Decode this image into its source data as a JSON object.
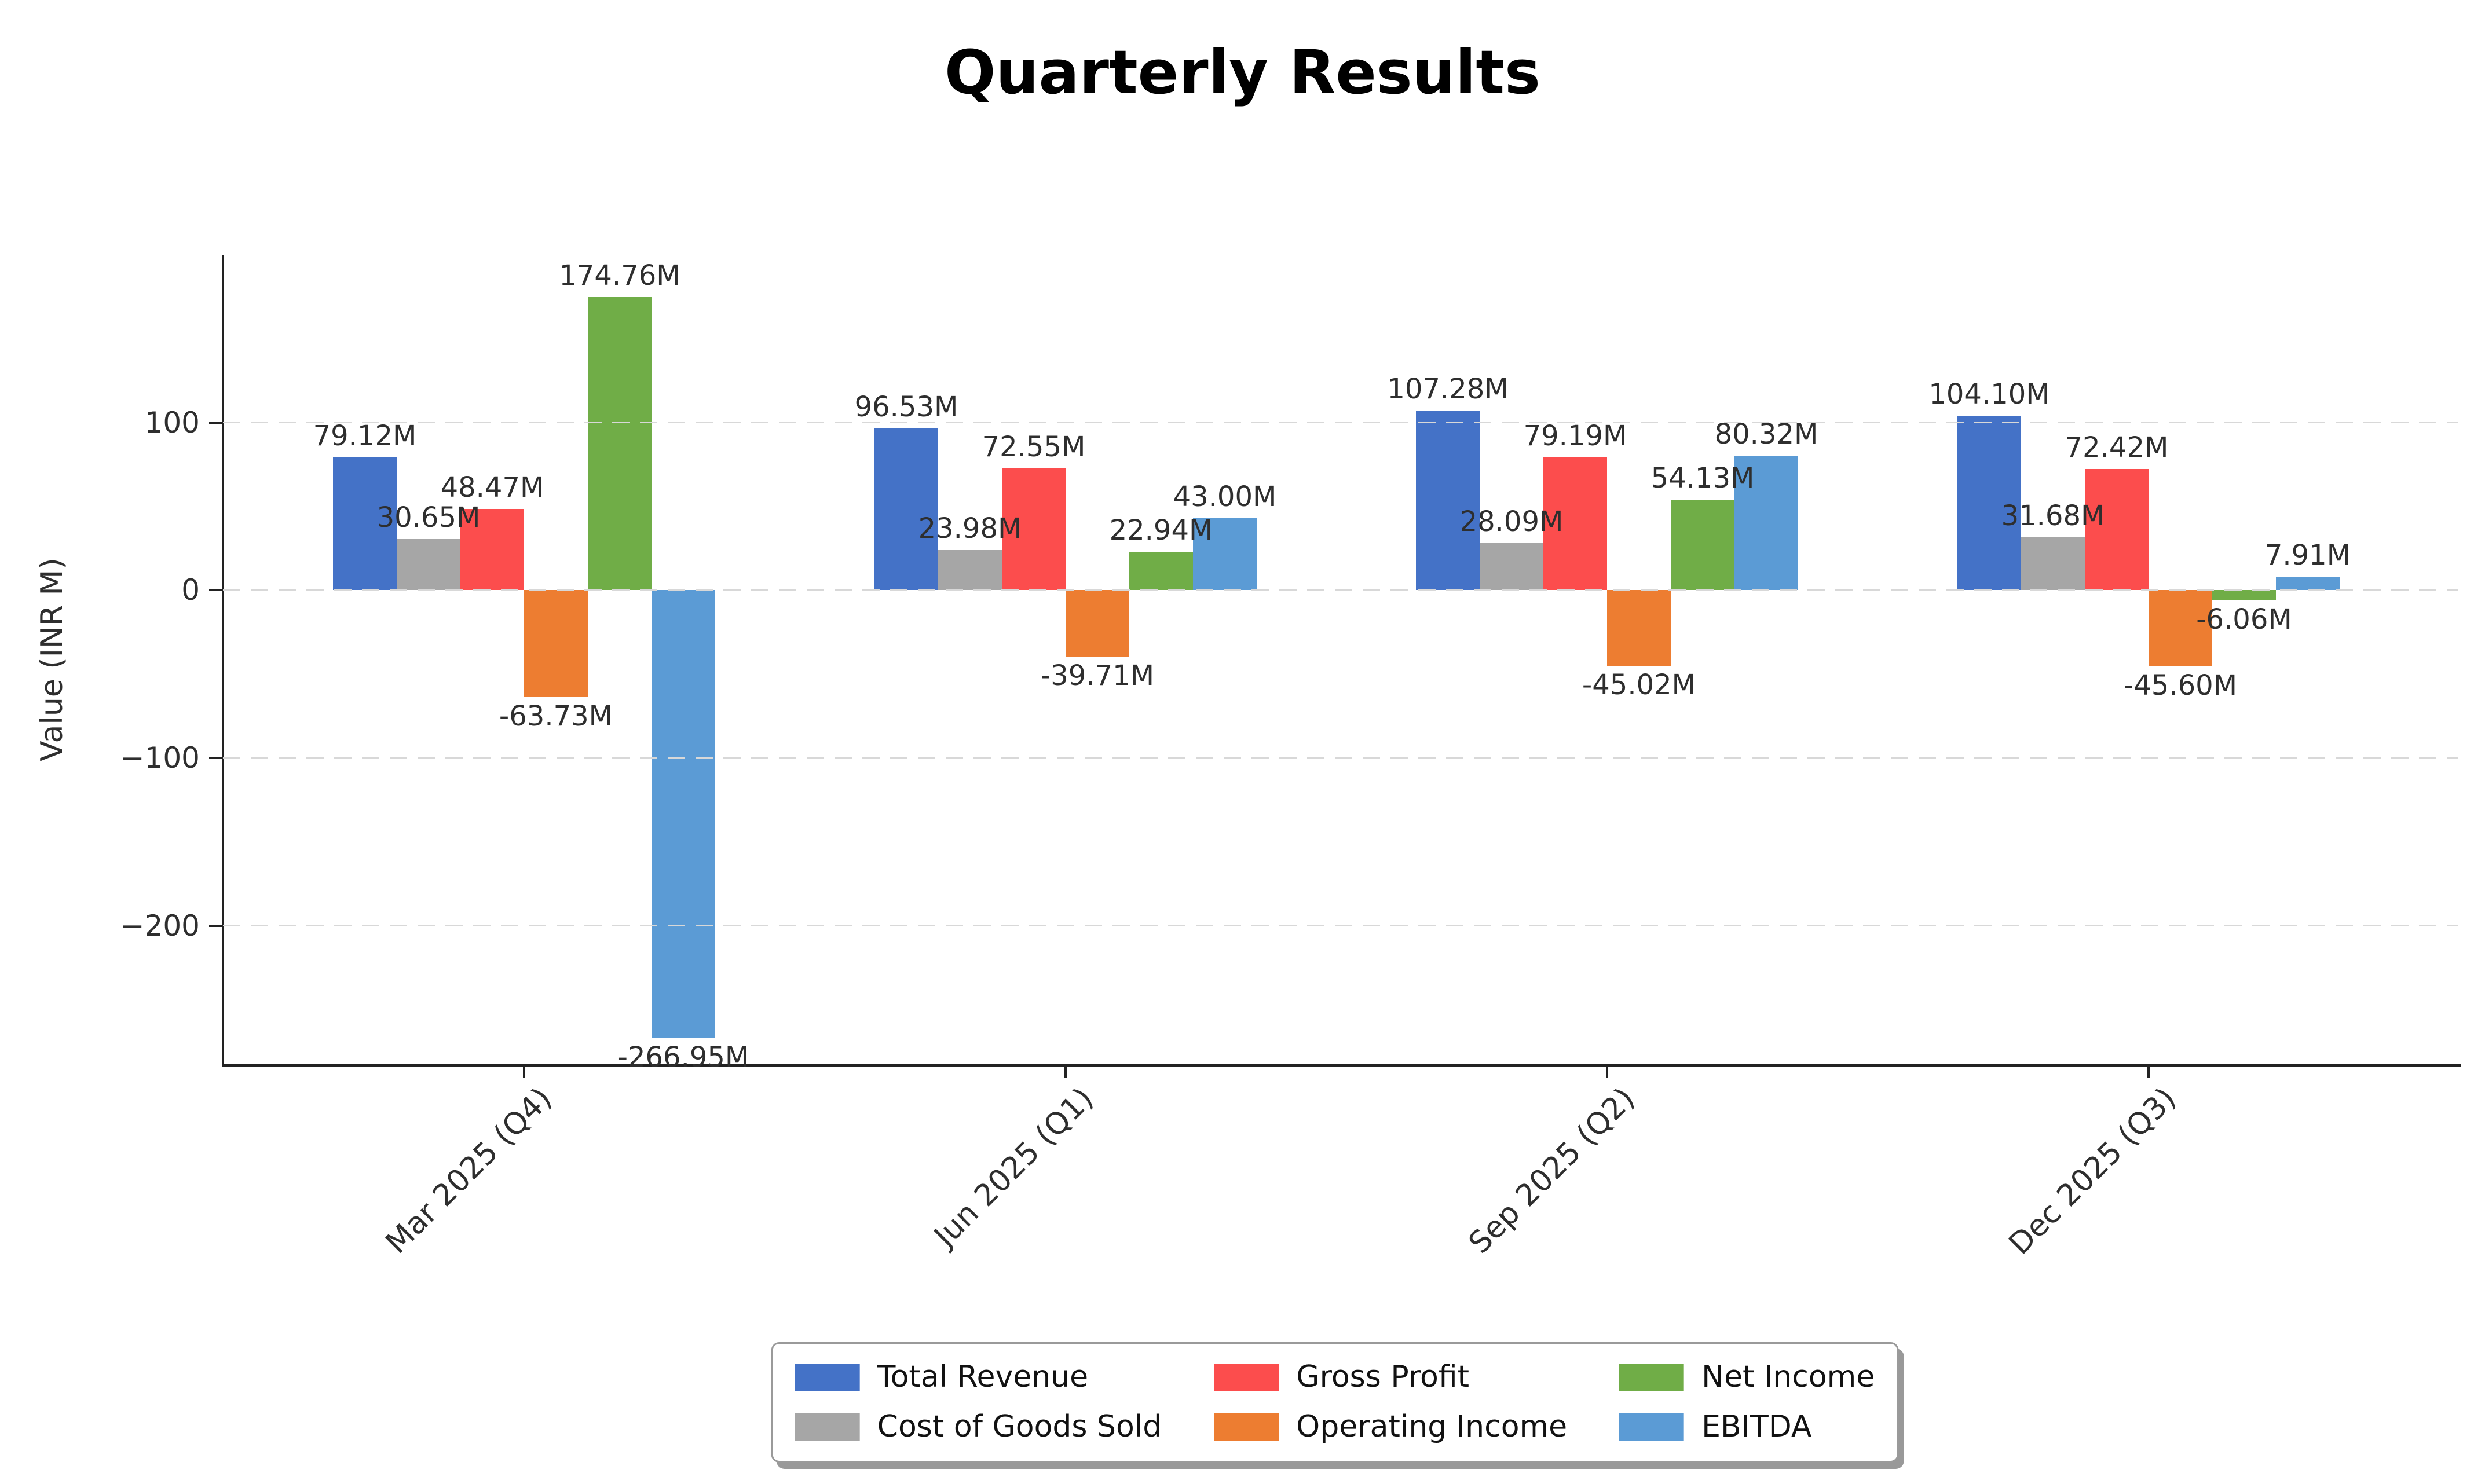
{
  "chart_data": {
    "type": "bar",
    "title": "Quarterly Results",
    "ylabel": "Value (INR M)",
    "xlabel": "",
    "unit": "INR M",
    "categories": [
      "Mar 2025 (Q4)",
      "Jun 2025 (Q1)",
      "Sep 2025 (Q2)",
      "Dec 2025 (Q3)"
    ],
    "series": [
      {
        "name": "Total Revenue",
        "color": "#4472C7",
        "values": [
          79.12,
          96.53,
          107.28,
          104.1
        ],
        "labels": [
          "79.12M",
          "96.53M",
          "107.28M",
          "104.10M"
        ]
      },
      {
        "name": "Cost of Goods Sold",
        "color": "#A6A6A6",
        "values": [
          30.65,
          23.98,
          28.09,
          31.68
        ],
        "labels": [
          "30.65M",
          "23.98M",
          "28.09M",
          "31.68M"
        ]
      },
      {
        "name": "Gross Profit",
        "color": "#FC4D4D",
        "values": [
          48.47,
          72.55,
          79.19,
          72.42
        ],
        "labels": [
          "48.47M",
          "72.55M",
          "79.19M",
          "72.42M"
        ]
      },
      {
        "name": "Operating Income",
        "color": "#ED7D31",
        "values": [
          -63.73,
          -39.71,
          -45.02,
          -45.6
        ],
        "labels": [
          "-63.73M",
          "-39.71M",
          "-45.02M",
          "-45.60M"
        ]
      },
      {
        "name": "Net Income",
        "color": "#70AD47",
        "values": [
          174.76,
          22.94,
          54.13,
          -6.06
        ],
        "labels": [
          "174.76M",
          "22.94M",
          "54.13M",
          "-6.06M"
        ]
      },
      {
        "name": "EBITDA",
        "color": "#5B9BD5",
        "values": [
          -266.95,
          43.0,
          80.32,
          7.91
        ],
        "labels": [
          "-266.95M",
          "43.00M",
          "80.32M",
          "7.91M"
        ]
      }
    ],
    "yticks": [
      {
        "value": 100,
        "label": "100"
      },
      {
        "value": 0,
        "label": "0"
      },
      {
        "value": -100,
        "label": "−100"
      },
      {
        "value": -200,
        "label": "−200"
      }
    ],
    "ylim": [
      -282.7,
      199.9
    ],
    "grid": {
      "axis": "y",
      "style": "dashed",
      "color": "#d8d8d8",
      "on_top_of_bars": true
    },
    "legend": {
      "position": "lower center",
      "ncol": 3,
      "order": "column-major",
      "rows": 2
    },
    "x_tick_label_rotation_deg": 45,
    "background": "#ffffff"
  }
}
